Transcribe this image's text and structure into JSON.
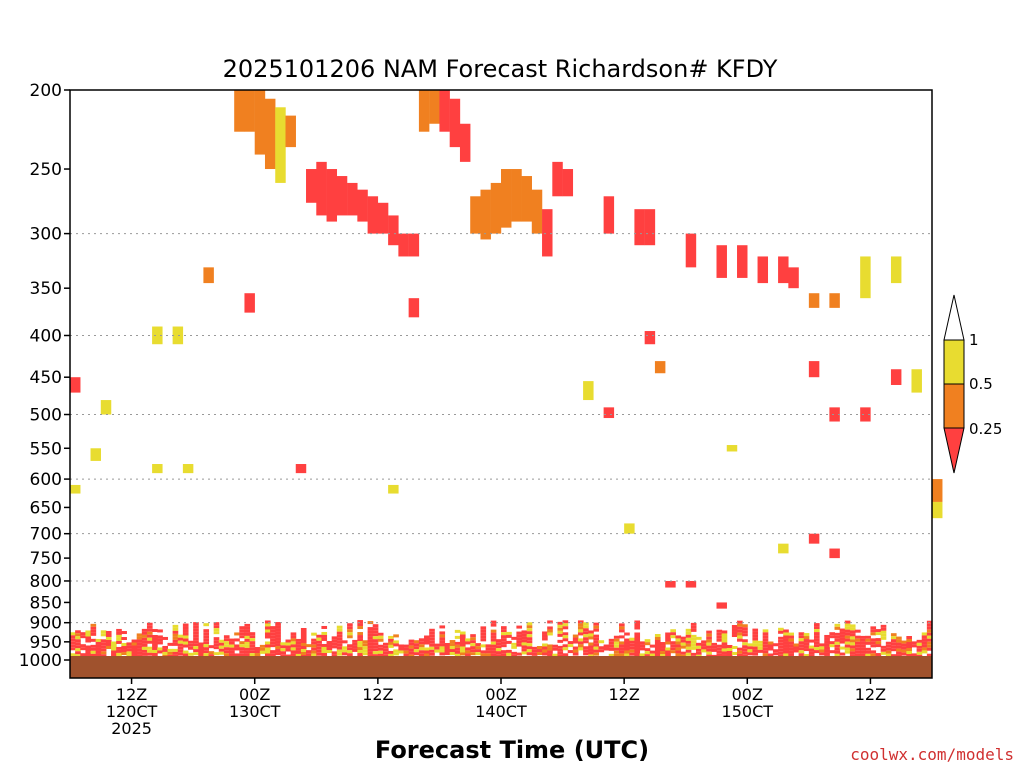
{
  "chart_data": {
    "type": "heatmap",
    "title": "2025101206 NAM Forecast Richardson# KFDY",
    "xlabel": "Forecast Time (UTC)",
    "ylabel": "",
    "credit": "coolwx.com/models",
    "x_range_hours": [
      0,
      84
    ],
    "ylim": [
      1000,
      200
    ],
    "y_ticks": [
      "200",
      "250",
      "300",
      "350",
      "400",
      "450",
      "500",
      "550",
      "600",
      "650",
      "700",
      "750",
      "800",
      "850",
      "900",
      "950",
      "1000"
    ],
    "y_gridlines": [
      "300",
      "400",
      "500",
      "600",
      "700",
      "800",
      "900"
    ],
    "x_ticks": [
      {
        "hour": 6,
        "line1": "12Z",
        "line2": "120CT",
        "line3": "2025"
      },
      {
        "hour": 18,
        "line1": "00Z",
        "line2": "130CT",
        "line3": ""
      },
      {
        "hour": 30,
        "line1": "12Z",
        "line2": "",
        "line3": ""
      },
      {
        "hour": 42,
        "line1": "00Z",
        "line2": "140CT",
        "line3": ""
      },
      {
        "hour": 54,
        "line1": "12Z",
        "line2": "",
        "line3": ""
      },
      {
        "hour": 66,
        "line1": "00Z",
        "line2": "150CT",
        "line3": ""
      },
      {
        "hour": 78,
        "line1": "12Z",
        "line2": "",
        "line3": ""
      }
    ],
    "legend": {
      "placement": "right",
      "bins": [
        {
          "range": "< 0.25",
          "color": "#ff4040"
        },
        {
          "range": "0.25 - 0.5",
          "color": "#f08020"
        },
        {
          "range": "0.5 - 1",
          "color": "#e8dc30"
        },
        {
          "range": "> 1",
          "color": "#ffffff"
        }
      ],
      "labels": [
        "1",
        "0.5",
        "0.25"
      ]
    },
    "ground_color": "#a0522d",
    "cells": [
      {
        "h": 16,
        "p": 200,
        "p2": 225,
        "cls": "orange"
      },
      {
        "h": 17,
        "p": 200,
        "p2": 225,
        "cls": "orange"
      },
      {
        "h": 18,
        "p": 200,
        "p2": 240,
        "cls": "orange"
      },
      {
        "h": 19,
        "p": 205,
        "p2": 250,
        "cls": "orange"
      },
      {
        "h": 20,
        "p": 210,
        "p2": 260,
        "cls": "yellow"
      },
      {
        "h": 21,
        "p": 215,
        "p2": 235,
        "cls": "orange"
      },
      {
        "h": 23,
        "p": 250,
        "p2": 275,
        "cls": "red"
      },
      {
        "h": 24,
        "p": 245,
        "p2": 285,
        "cls": "red"
      },
      {
        "h": 25,
        "p": 250,
        "p2": 290,
        "cls": "red"
      },
      {
        "h": 26,
        "p": 255,
        "p2": 285,
        "cls": "red"
      },
      {
        "h": 27,
        "p": 260,
        "p2": 285,
        "cls": "red"
      },
      {
        "h": 28,
        "p": 265,
        "p2": 290,
        "cls": "red"
      },
      {
        "h": 29,
        "p": 270,
        "p2": 300,
        "cls": "red"
      },
      {
        "h": 30,
        "p": 275,
        "p2": 300,
        "cls": "red"
      },
      {
        "h": 31,
        "p": 285,
        "p2": 310,
        "cls": "red"
      },
      {
        "h": 32,
        "p": 300,
        "p2": 320,
        "cls": "red"
      },
      {
        "h": 33,
        "p": 300,
        "p2": 320,
        "cls": "red"
      },
      {
        "h": 34,
        "p": 200,
        "p2": 225,
        "cls": "orange"
      },
      {
        "h": 35,
        "p": 200,
        "p2": 220,
        "cls": "orange"
      },
      {
        "h": 36,
        "p": 200,
        "p2": 225,
        "cls": "red"
      },
      {
        "h": 37,
        "p": 205,
        "p2": 235,
        "cls": "red"
      },
      {
        "h": 38,
        "p": 220,
        "p2": 245,
        "cls": "red"
      },
      {
        "h": 39,
        "p": 270,
        "p2": 300,
        "cls": "orange"
      },
      {
        "h": 40,
        "p": 265,
        "p2": 305,
        "cls": "orange"
      },
      {
        "h": 41,
        "p": 260,
        "p2": 300,
        "cls": "orange"
      },
      {
        "h": 42,
        "p": 250,
        "p2": 295,
        "cls": "orange"
      },
      {
        "h": 43,
        "p": 250,
        "p2": 290,
        "cls": "orange"
      },
      {
        "h": 44,
        "p": 255,
        "p2": 290,
        "cls": "orange"
      },
      {
        "h": 45,
        "p": 265,
        "p2": 300,
        "cls": "orange"
      },
      {
        "h": 46,
        "p": 280,
        "p2": 320,
        "cls": "red"
      },
      {
        "h": 47,
        "p": 245,
        "p2": 270,
        "cls": "red"
      },
      {
        "h": 48,
        "p": 250,
        "p2": 270,
        "cls": "red"
      },
      {
        "h": 52,
        "p": 270,
        "p2": 300,
        "cls": "red"
      },
      {
        "h": 55,
        "p": 280,
        "p2": 310,
        "cls": "red"
      },
      {
        "h": 56,
        "p": 280,
        "p2": 310,
        "cls": "red"
      },
      {
        "h": 60,
        "p": 300,
        "p2": 330,
        "cls": "red"
      },
      {
        "h": 63,
        "p": 310,
        "p2": 340,
        "cls": "red"
      },
      {
        "h": 65,
        "p": 310,
        "p2": 340,
        "cls": "red"
      },
      {
        "h": 67,
        "p": 320,
        "p2": 345,
        "cls": "red"
      },
      {
        "h": 69,
        "p": 320,
        "p2": 345,
        "cls": "red"
      },
      {
        "h": 70,
        "p": 330,
        "p2": 350,
        "cls": "red"
      },
      {
        "h": 72,
        "p": 355,
        "p2": 370,
        "cls": "orange"
      },
      {
        "h": 74,
        "p": 355,
        "p2": 370,
        "cls": "orange"
      },
      {
        "h": 77,
        "p": 320,
        "p2": 360,
        "cls": "yellow"
      },
      {
        "h": 80,
        "p": 320,
        "p2": 345,
        "cls": "yellow"
      },
      {
        "h": 13,
        "p": 330,
        "p2": 345,
        "cls": "orange"
      },
      {
        "h": 17,
        "p": 355,
        "p2": 375,
        "cls": "red"
      },
      {
        "h": 33,
        "p": 360,
        "p2": 380,
        "cls": "red"
      },
      {
        "h": 8,
        "p": 390,
        "p2": 410,
        "cls": "yellow"
      },
      {
        "h": 10,
        "p": 390,
        "p2": 410,
        "cls": "yellow"
      },
      {
        "h": 0,
        "p": 450,
        "p2": 470,
        "cls": "red"
      },
      {
        "h": 3,
        "p": 480,
        "p2": 500,
        "cls": "yellow"
      },
      {
        "h": 2,
        "p": 550,
        "p2": 570,
        "cls": "yellow"
      },
      {
        "h": 8,
        "p": 575,
        "p2": 590,
        "cls": "yellow"
      },
      {
        "h": 11,
        "p": 575,
        "p2": 590,
        "cls": "yellow"
      },
      {
        "h": 22,
        "p": 575,
        "p2": 590,
        "cls": "red"
      },
      {
        "h": 31,
        "p": 610,
        "p2": 625,
        "cls": "yellow"
      },
      {
        "h": 0,
        "p": 610,
        "p2": 625,
        "cls": "yellow"
      },
      {
        "h": 50,
        "p": 455,
        "p2": 480,
        "cls": "yellow"
      },
      {
        "h": 52,
        "p": 490,
        "p2": 505,
        "cls": "red"
      },
      {
        "h": 56,
        "p": 395,
        "p2": 410,
        "cls": "red"
      },
      {
        "h": 57,
        "p": 430,
        "p2": 445,
        "cls": "orange"
      },
      {
        "h": 64,
        "p": 545,
        "p2": 555,
        "cls": "yellow"
      },
      {
        "h": 72,
        "p": 430,
        "p2": 450,
        "cls": "red"
      },
      {
        "h": 74,
        "p": 490,
        "p2": 510,
        "cls": "red"
      },
      {
        "h": 77,
        "p": 490,
        "p2": 510,
        "cls": "red"
      },
      {
        "h": 80,
        "p": 440,
        "p2": 460,
        "cls": "red"
      },
      {
        "h": 82,
        "p": 440,
        "p2": 470,
        "cls": "yellow"
      },
      {
        "h": 72,
        "p": 700,
        "p2": 720,
        "cls": "red"
      },
      {
        "h": 74,
        "p": 730,
        "p2": 750,
        "cls": "red"
      },
      {
        "h": 69,
        "p": 720,
        "p2": 740,
        "cls": "yellow"
      },
      {
        "h": 60,
        "p": 800,
        "p2": 815,
        "cls": "red"
      },
      {
        "h": 58,
        "p": 800,
        "p2": 815,
        "cls": "red"
      },
      {
        "h": 63,
        "p": 850,
        "p2": 865,
        "cls": "red"
      },
      {
        "h": 54,
        "p": 680,
        "p2": 700,
        "cls": "yellow"
      },
      {
        "h": 84,
        "p": 600,
        "p2": 640,
        "cls": "orange"
      },
      {
        "h": 84,
        "p": 640,
        "p2": 670,
        "cls": "yellow"
      }
    ]
  }
}
